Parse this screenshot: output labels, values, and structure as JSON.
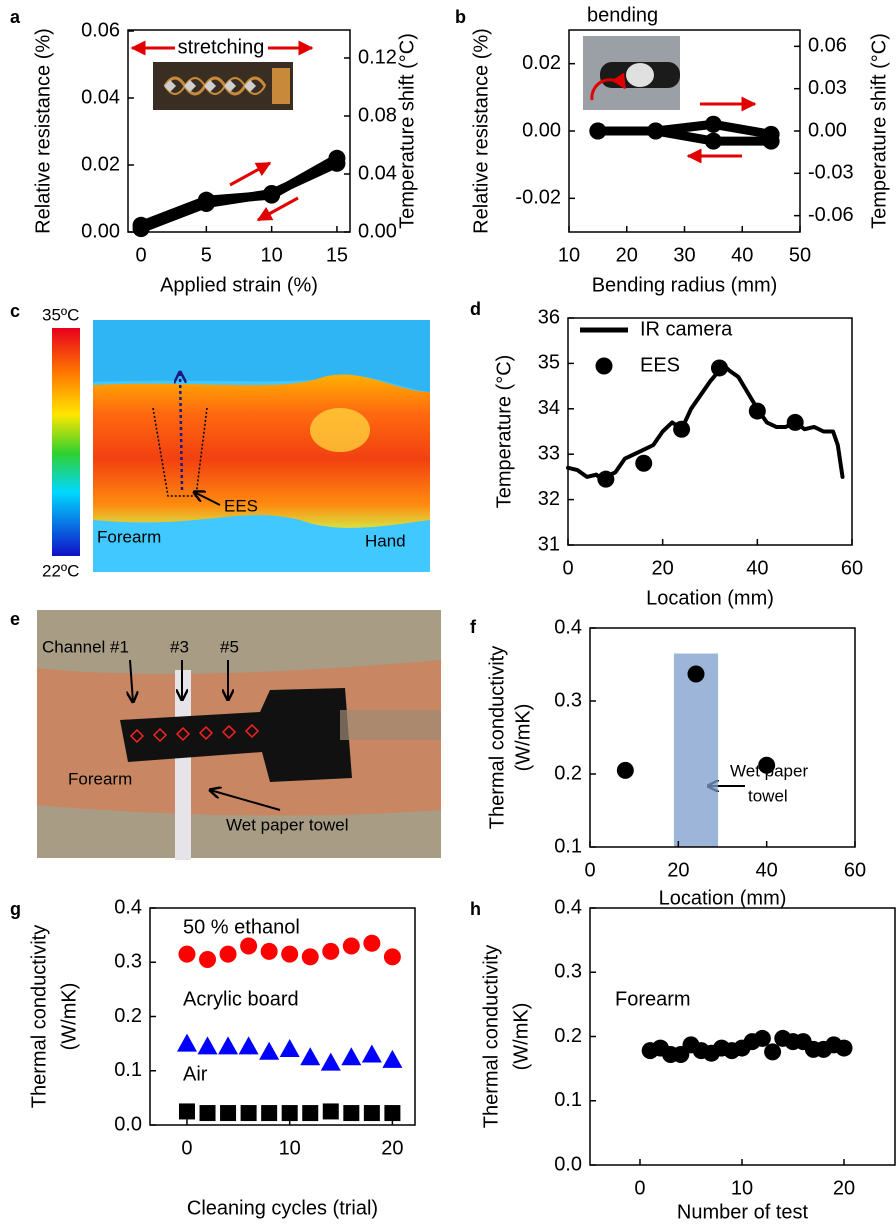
{
  "chart_data": [
    {
      "panel": "a",
      "type": "line",
      "xlabel": "Applied strain (%)",
      "ylabel": "Relative resistance (%)",
      "y2label": "Temperature shift (°C)",
      "xlim": [
        -1,
        16
      ],
      "xticks": [
        0,
        5,
        10,
        15
      ],
      "ylim": [
        0,
        0.0603
      ],
      "yticks": [
        {
          "value": 0,
          "label": "0.00"
        },
        {
          "value": 0.02,
          "label": "0.02"
        },
        {
          "value": 0.04,
          "label": "0.04"
        },
        {
          "value": 0.06,
          "label": "0.06"
        }
      ],
      "y2lim": [
        0,
        0.1393
      ],
      "y2ticks": [
        {
          "value": 0,
          "label": "0.00"
        },
        {
          "value": 0.04,
          "label": "0.04"
        },
        {
          "value": 0.08,
          "label": "0.08"
        },
        {
          "value": 0.12,
          "label": "0.12"
        }
      ],
      "annotations": [
        "stretching"
      ],
      "series": [
        {
          "x": [
            0,
            5,
            10,
            15
          ],
          "values": [
            0.002,
            0.0095,
            0.011,
            0.022
          ],
          "color": "#000000",
          "marker": "circle",
          "line": "thick"
        },
        {
          "x": [
            15,
            10,
            5,
            0
          ],
          "values": [
            0.0205,
            0.0115,
            0.0085,
            0.001
          ],
          "color": "#000000",
          "marker": "circle",
          "line": "thick"
        }
      ]
    },
    {
      "panel": "b",
      "type": "line",
      "xlabel": "Bending radius (mm)",
      "ylabel": "Relative resistance (%)",
      "y2label": "Temperature shift (°C)",
      "xlim": [
        10,
        50
      ],
      "xticks": [
        10,
        20,
        30,
        40,
        50
      ],
      "ylim": [
        -0.03,
        0.03
      ],
      "yticks": [
        {
          "value": -0.02,
          "label": "-0.02"
        },
        {
          "value": 0,
          "label": "0.00"
        },
        {
          "value": 0.02,
          "label": "0.02"
        }
      ],
      "y2lim": [
        -0.0716,
        0.0716
      ],
      "y2ticks": [
        {
          "value": -0.06,
          "label": "-0.06"
        },
        {
          "value": -0.03,
          "label": "-0.03"
        },
        {
          "value": 0,
          "label": "0.00"
        },
        {
          "value": 0.03,
          "label": "0.03"
        },
        {
          "value": 0.06,
          "label": "0.06"
        }
      ],
      "annotations": [
        "bending"
      ],
      "series": [
        {
          "x": [
            15,
            25,
            35,
            45
          ],
          "values": [
            0,
            0,
            0.002,
            -0.001
          ],
          "color": "#000000",
          "marker": "circle",
          "line": "thick"
        },
        {
          "x": [
            45,
            35,
            25,
            15
          ],
          "values": [
            -0.003,
            -0.003,
            0,
            0
          ],
          "color": "#000000",
          "marker": "circle",
          "line": "thick"
        }
      ]
    },
    {
      "panel": "d",
      "type": "line",
      "xlabel": "Location (mm)",
      "ylabel": "Temperature (°C)",
      "xlim": [
        0,
        60
      ],
      "xticks": [
        0,
        20,
        40,
        60
      ],
      "ylim": [
        31,
        36
      ],
      "yticks": [
        31,
        32,
        33,
        34,
        35,
        36
      ],
      "legend": "upper left",
      "series": [
        {
          "name": "IR camera",
          "color": "#000000",
          "marker": "none",
          "line": "thin",
          "x": [
            0,
            2,
            4,
            6,
            7,
            8,
            10,
            12,
            14,
            16,
            18,
            20,
            22,
            24,
            26,
            28,
            30,
            32,
            33,
            34,
            36,
            38,
            40,
            42,
            44,
            46,
            48,
            50,
            52,
            54,
            56,
            57,
            58
          ],
          "values": [
            32.7,
            32.65,
            32.5,
            32.55,
            32.45,
            32.5,
            32.6,
            32.9,
            33.0,
            33.1,
            33.2,
            33.5,
            33.7,
            33.55,
            34.0,
            34.3,
            34.6,
            34.85,
            34.95,
            34.85,
            34.7,
            34.35,
            34.0,
            33.7,
            33.6,
            33.6,
            33.7,
            33.55,
            33.6,
            33.5,
            33.5,
            33.2,
            32.5
          ]
        },
        {
          "name": "EES",
          "color": "#000000",
          "marker": "circle",
          "line": "none",
          "x": [
            8,
            16,
            24,
            32,
            40,
            48
          ],
          "values": [
            32.45,
            32.8,
            33.55,
            34.9,
            33.95,
            33.7
          ]
        }
      ]
    },
    {
      "panel": "f",
      "type": "scatter",
      "xlabel": "Location (mm)",
      "ylabel": [
        "Thermal conductivity",
        "(W/mK)"
      ],
      "xlim": [
        0,
        60
      ],
      "xticks": [
        0,
        20,
        40,
        60
      ],
      "ylim": [
        0.1,
        0.4
      ],
      "yticks": [
        0.1,
        0.2,
        0.3,
        0.4
      ],
      "annotations": [
        "Wet paper",
        "towel"
      ],
      "highlight": {
        "x": [
          19,
          29
        ],
        "y": [
          0.1,
          0.365
        ],
        "color": "#7b9ccb"
      },
      "series": [
        {
          "x": [
            8,
            24,
            40
          ],
          "values": [
            0.205,
            0.337,
            0.212
          ],
          "color": "#000000",
          "marker": "circle",
          "line": "none"
        }
      ]
    },
    {
      "panel": "g",
      "type": "scatter",
      "xlabel": "Cleaning cycles (trial)",
      "ylabel": [
        "Thermal conductivity",
        "(W/mK)"
      ],
      "xlim": [
        -3.6,
        22.2
      ],
      "xticks": [
        0,
        10,
        20
      ],
      "ylim": [
        0,
        0.4
      ],
      "yticks": [
        {
          "value": 0,
          "label": "0.0"
        },
        0.1,
        0.2,
        0.3,
        0.4
      ],
      "series": [
        {
          "name": "50 % ethanol",
          "color": "#ff0000",
          "marker": "circle",
          "line": "none",
          "x": [
            0,
            2,
            4,
            6,
            8,
            10,
            12,
            14,
            16,
            18,
            20
          ],
          "values": [
            0.315,
            0.305,
            0.315,
            0.33,
            0.32,
            0.315,
            0.31,
            0.32,
            0.33,
            0.335,
            0.31
          ]
        },
        {
          "name": "Acrylic board",
          "color": "#0000ff",
          "marker": "triangle",
          "line": "none",
          "x": [
            0,
            2,
            4,
            6,
            8,
            10,
            12,
            14,
            16,
            18,
            20
          ],
          "values": [
            0.15,
            0.145,
            0.145,
            0.145,
            0.135,
            0.14,
            0.125,
            0.115,
            0.125,
            0.13,
            0.12
          ]
        },
        {
          "name": "Air",
          "color": "#000000",
          "marker": "square",
          "line": "none",
          "x": [
            0,
            2,
            4,
            6,
            8,
            10,
            12,
            14,
            16,
            18,
            20
          ],
          "values": [
            0.025,
            0.022,
            0.022,
            0.022,
            0.022,
            0.022,
            0.022,
            0.025,
            0.022,
            0.022,
            0.022
          ]
        }
      ]
    },
    {
      "panel": "h",
      "type": "scatter",
      "xlabel": "Number of test",
      "ylabel": [
        "Thermal conductivity",
        "(W/mK)"
      ],
      "xlim": [
        -4.9,
        25
      ],
      "xticks": [
        0,
        10,
        20
      ],
      "ylim": [
        0,
        0.4
      ],
      "yticks": [
        {
          "value": 0,
          "label": "0.0"
        },
        0.1,
        0.2,
        0.3,
        0.4
      ],
      "annotations": [
        "Forearm"
      ],
      "series": [
        {
          "color": "#000000",
          "marker": "circle",
          "line": "none",
          "x": [
            1,
            2,
            3,
            4,
            5,
            6,
            7,
            8,
            9,
            10,
            11,
            12,
            13,
            14,
            15,
            16,
            17,
            18,
            19,
            20
          ],
          "values": [
            0.178,
            0.182,
            0.172,
            0.172,
            0.187,
            0.178,
            0.174,
            0.182,
            0.178,
            0.182,
            0.192,
            0.197,
            0.176,
            0.197,
            0.192,
            0.192,
            0.18,
            0.18,
            0.187,
            0.182
          ]
        }
      ]
    }
  ],
  "images": [
    {
      "panel": "c",
      "colorbar_top": "35ºC",
      "colorbar_bottom": "22ºC",
      "labels": [
        "Forearm",
        "EES",
        "Hand"
      ]
    },
    {
      "panel": "e",
      "labels": [
        "Channel #1",
        "#3",
        "#5",
        "Forearm",
        "Wet paper towel"
      ]
    }
  ]
}
